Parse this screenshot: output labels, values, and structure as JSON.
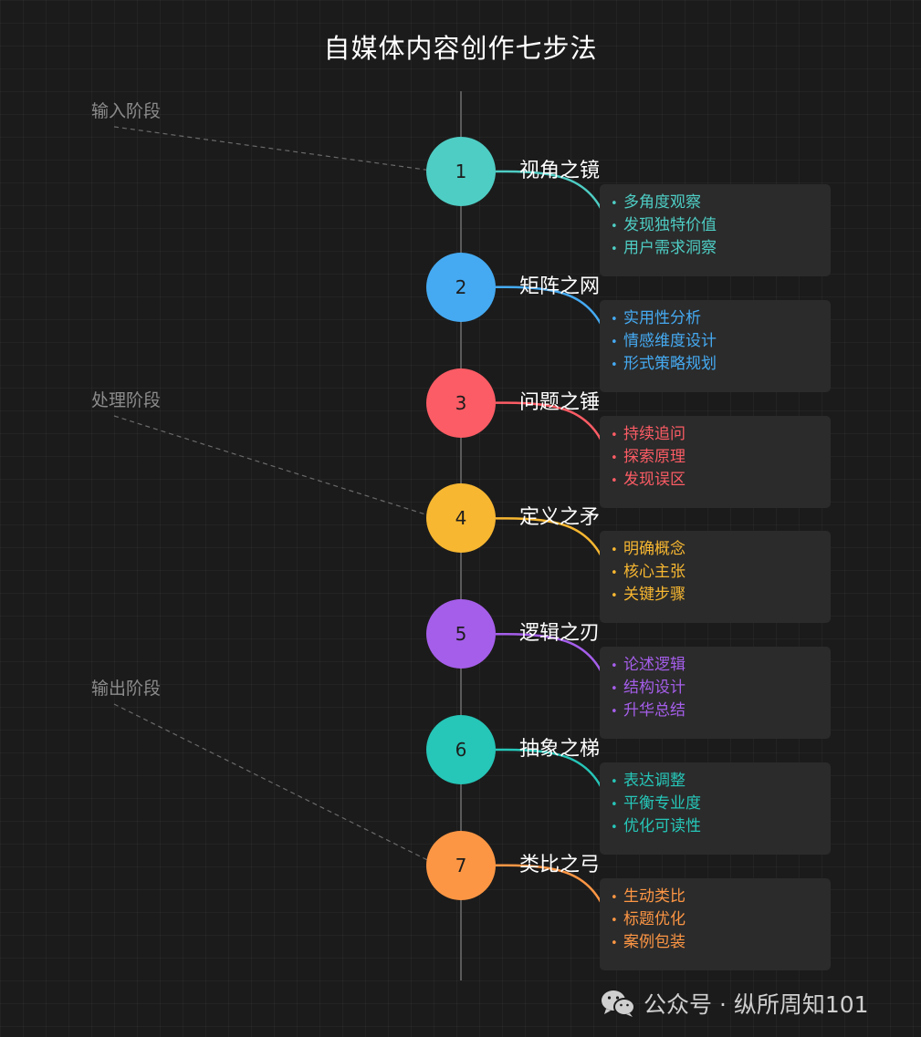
{
  "title": "自媒体内容创作七步法",
  "stages": [
    {
      "label": "输入阶段",
      "target_step": 1
    },
    {
      "label": "处理阶段",
      "target_step": 4
    },
    {
      "label": "输出阶段",
      "target_step": 7
    }
  ],
  "steps": [
    {
      "number": "1",
      "title": "视角之镜",
      "color": "#4ecdc4",
      "items": [
        "多角度观察",
        "发现独特价值",
        "用户需求洞察"
      ]
    },
    {
      "number": "2",
      "title": "矩阵之网",
      "color": "#45aaf2",
      "items": [
        "实用性分析",
        "情感维度设计",
        "形式策略规划"
      ]
    },
    {
      "number": "3",
      "title": "问题之锤",
      "color": "#fc5c65",
      "items": [
        "持续追问",
        "探索原理",
        "发现误区"
      ]
    },
    {
      "number": "4",
      "title": "定义之矛",
      "color": "#f7b731",
      "items": [
        "明确概念",
        "核心主张",
        "关键步骤"
      ]
    },
    {
      "number": "5",
      "title": "逻辑之刃",
      "color": "#a55eea",
      "items": [
        "论述逻辑",
        "结构设计",
        "升华总结"
      ]
    },
    {
      "number": "6",
      "title": "抽象之梯",
      "color": "#26c6b8",
      "items": [
        "表达调整",
        "平衡专业度",
        "优化可读性"
      ]
    },
    {
      "number": "7",
      "title": "类比之弓",
      "color": "#fd9644",
      "items": [
        "生动类比",
        "标题优化",
        "案例包装"
      ]
    }
  ],
  "footer": {
    "icon": "wechat-icon",
    "text": "公众号 · 纵所周知101"
  }
}
